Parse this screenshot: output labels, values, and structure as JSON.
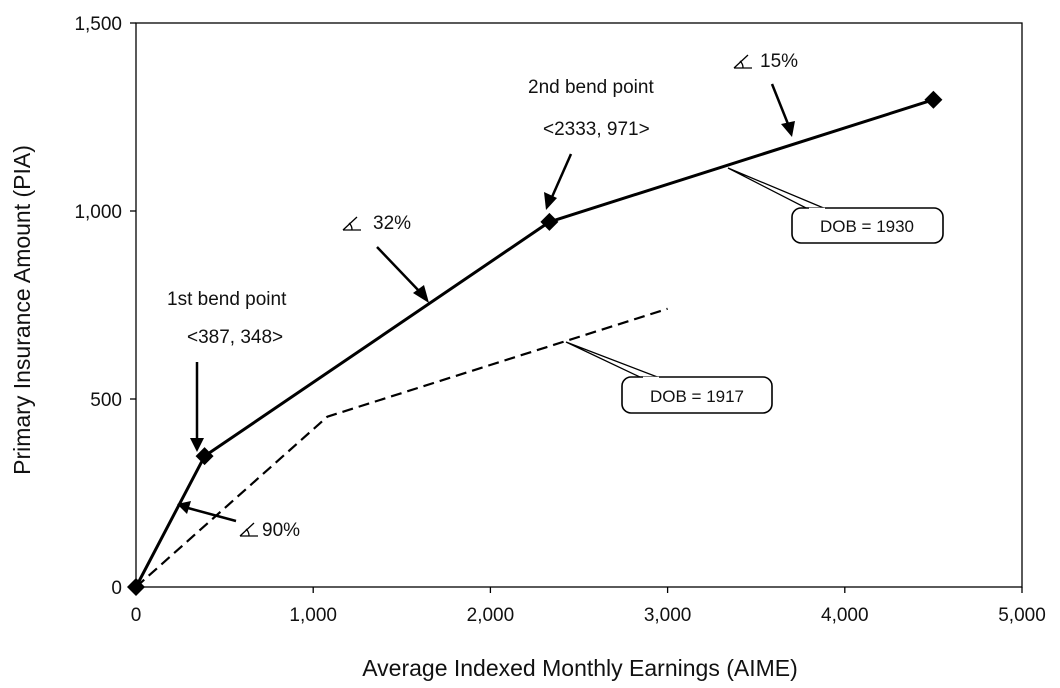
{
  "chart_data": {
    "type": "line",
    "xlabel": "Average Indexed Monthly Earnings (AIME)",
    "ylabel": "Primary Insurance Amount (PIA)",
    "xlim": [
      0,
      5000
    ],
    "ylim": [
      0,
      1500
    ],
    "x_ticks": [
      0,
      1000,
      2000,
      3000,
      4000,
      5000
    ],
    "x_tick_labels": [
      "0",
      "1,000",
      "2,000",
      "3,000",
      "4,000",
      "5,000"
    ],
    "y_ticks": [
      0,
      500,
      1000,
      1500
    ],
    "y_tick_labels": [
      "0",
      "500",
      "1,000",
      "1,500"
    ],
    "grid": false,
    "series": [
      {
        "name": "DOB = 1930",
        "style": "solid",
        "markers": "diamond",
        "x": [
          0,
          387,
          2333,
          4500
        ],
        "y": [
          0,
          348,
          971,
          1296
        ]
      },
      {
        "name": "DOB = 1917",
        "style": "dashed",
        "markers": "none",
        "x": [
          0,
          1080,
          3000
        ],
        "y": [
          0,
          453,
          740
        ]
      }
    ],
    "annotations": {
      "bend1": {
        "title": "1st bend point",
        "coords": "<387, 348>",
        "x": 387,
        "y": 348
      },
      "bend2": {
        "title": "2nd bend point",
        "coords": "<2333, 971>",
        "x": 2333,
        "y": 971
      },
      "slope90": {
        "label": "90%"
      },
      "slope32": {
        "label": "32%"
      },
      "slope15": {
        "label": "15%"
      }
    },
    "colors": {
      "line": "#000000",
      "background": "#ffffff"
    }
  }
}
